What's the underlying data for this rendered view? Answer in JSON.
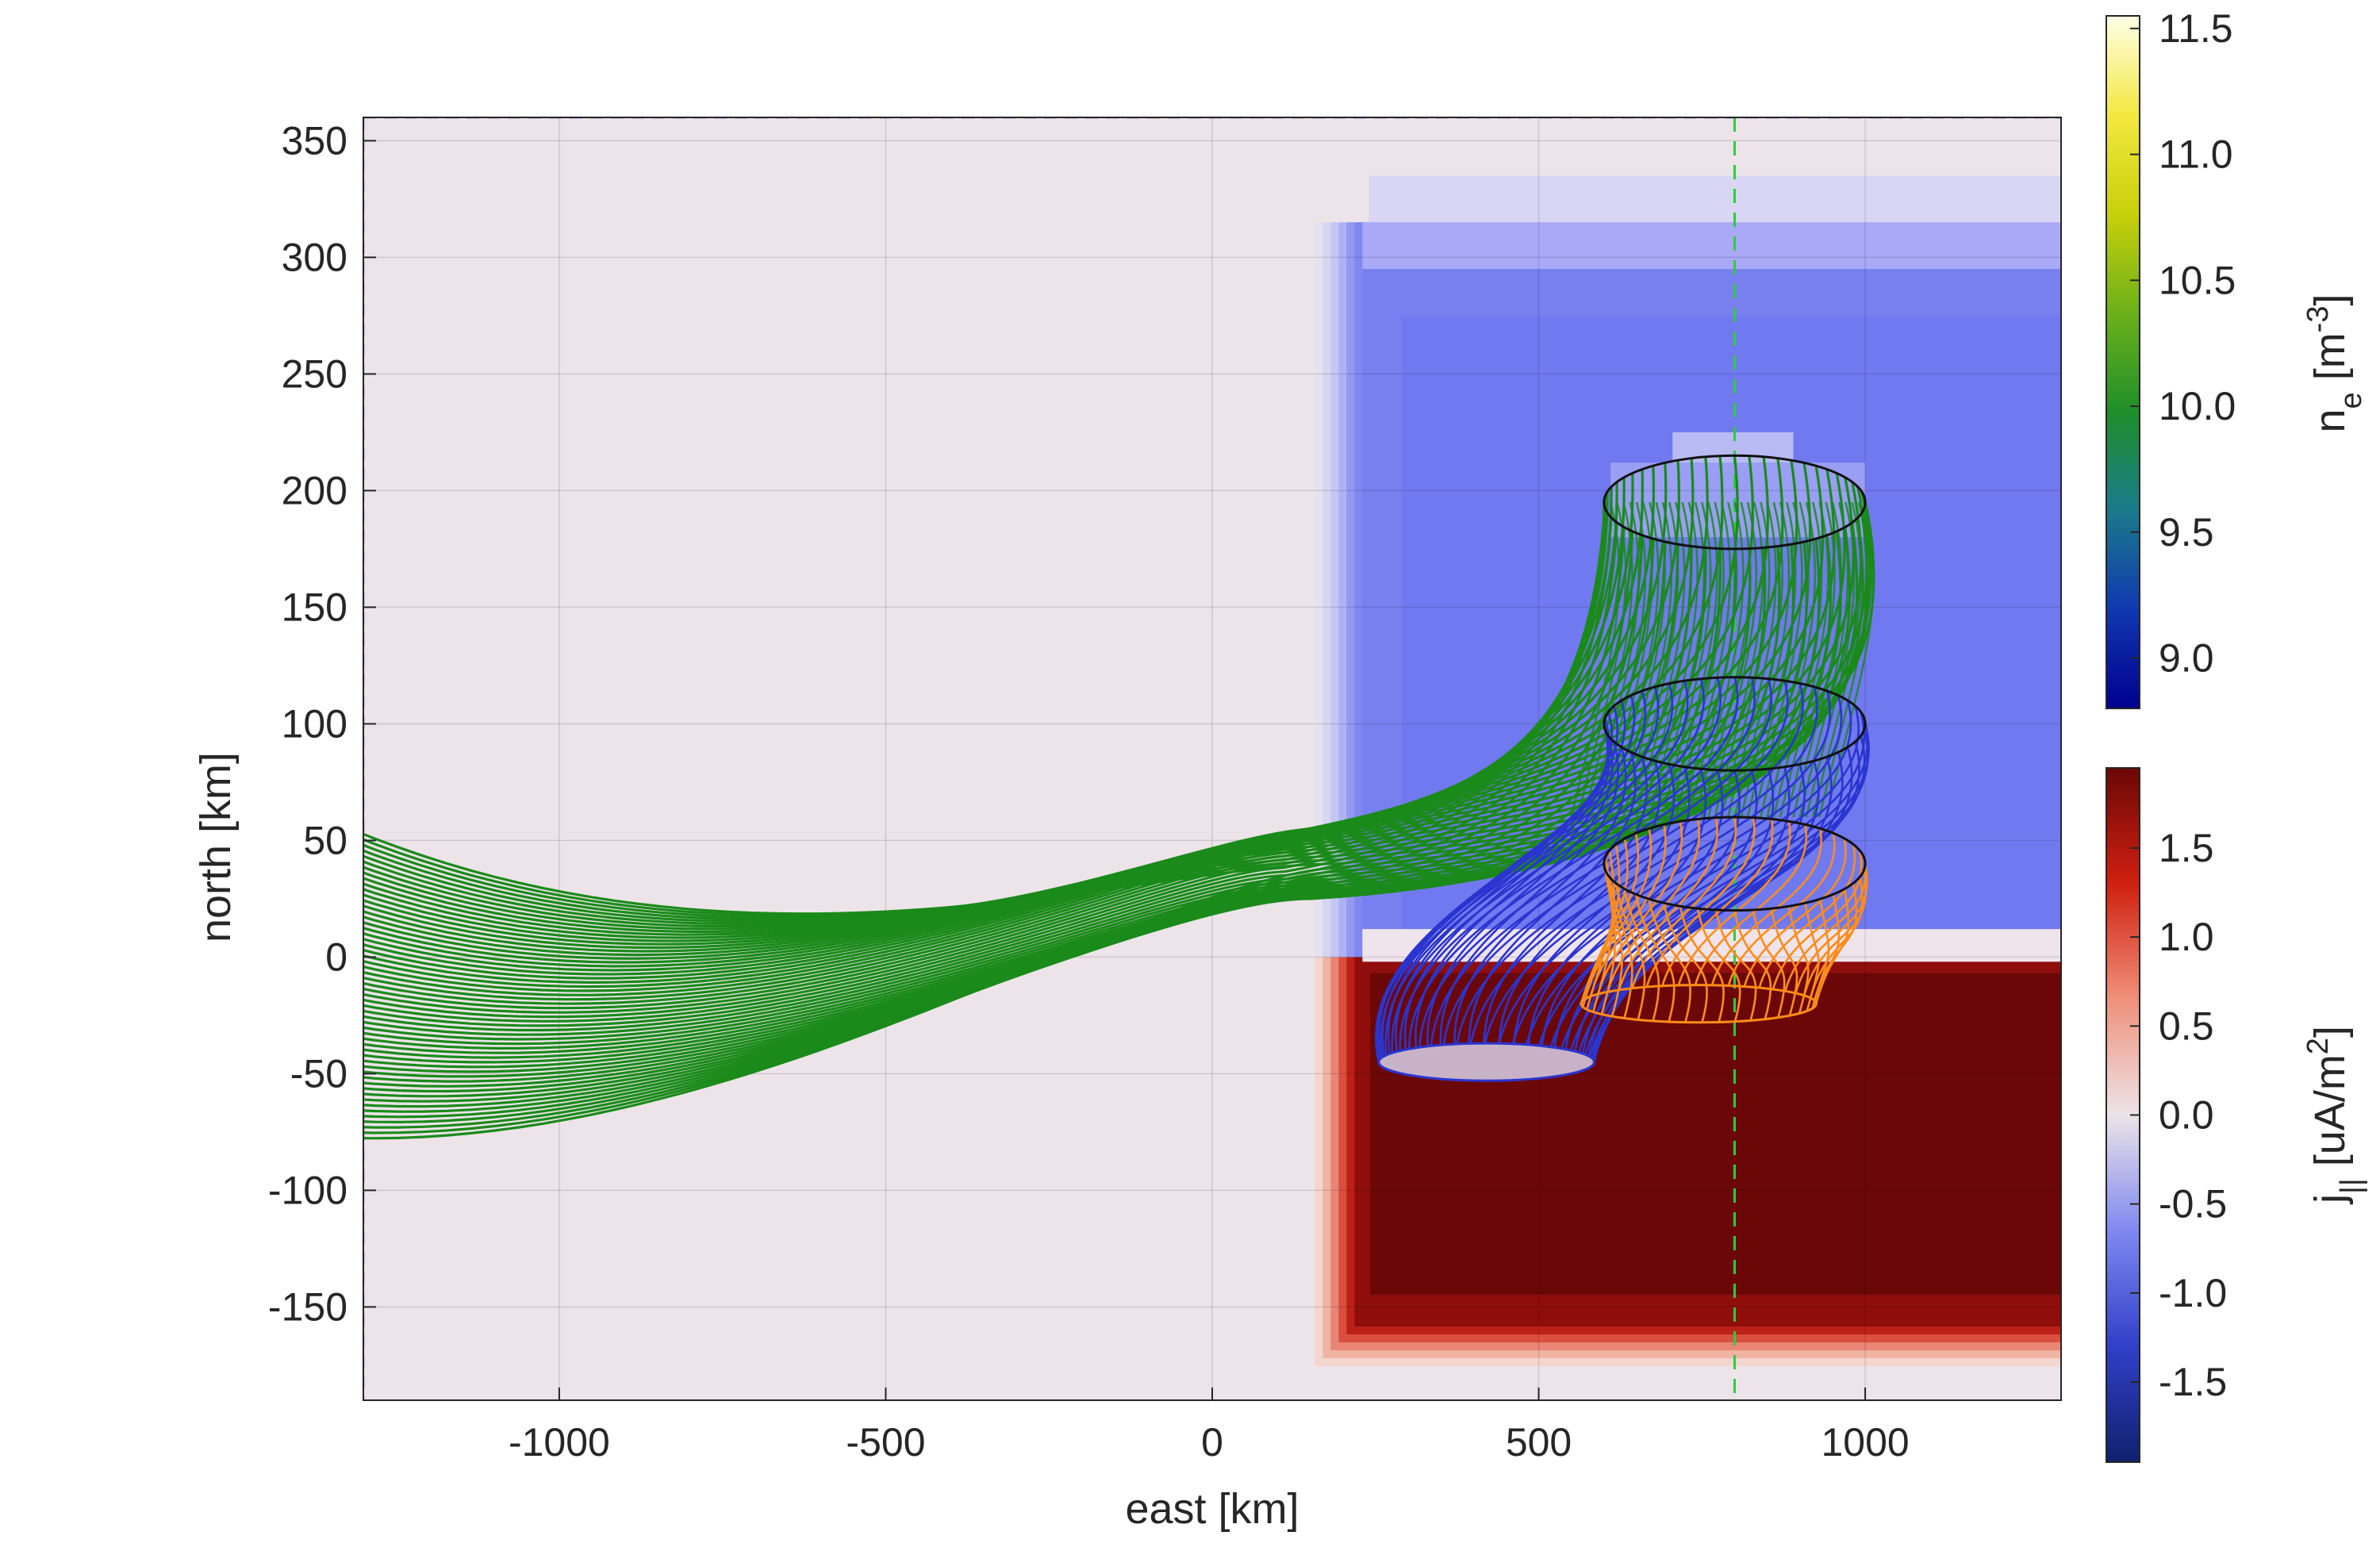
{
  "chart_data": {
    "type": "heatmap",
    "xlabel": "east [km]",
    "ylabel": "north [km]",
    "xlim": [
      -1300,
      1300
    ],
    "ylim": [
      -190,
      360
    ],
    "xticks": [
      "-1000",
      "-500",
      "0",
      "500",
      "1000"
    ],
    "xtick_values": [
      -1000,
      -500,
      0,
      500,
      1000
    ],
    "yticks": [
      "350",
      "300",
      "250",
      "200",
      "150",
      "100",
      "50",
      "0",
      "-50",
      "-100",
      "-150"
    ],
    "ytick_values": [
      350,
      300,
      250,
      200,
      150,
      100,
      50,
      0,
      -50,
      -100,
      -150
    ],
    "grid": true,
    "background_color": "#ece4e8",
    "reference_line": {
      "style": "dashed",
      "color": "#2ecc40",
      "x": 800
    },
    "ne_region": {
      "description_level": "n_e colored current regions",
      "x": [
        230,
        1300
      ],
      "y": [
        0,
        335
      ],
      "color": "#7880ef",
      "inner_shade_x": [
        290,
        1300
      ],
      "inner_shade_y": [
        0,
        275
      ],
      "inner_shade_color": "#7179f0",
      "top_band_y": [
        315,
        335
      ],
      "top_band_color": "#d8d6f2",
      "second_band_y": [
        295,
        315
      ],
      "second_band_color": "#a9a9f7"
    },
    "j_region": {
      "x": [
        230,
        1300
      ],
      "y": [
        -155,
        0
      ],
      "color": "#6b0707",
      "transition_y": [
        0,
        10
      ]
    },
    "flux_tubes": [
      {
        "name": "green",
        "color": "#1a8a1a",
        "top_ellipse": {
          "cx": 800,
          "cy": 195,
          "rx": 200,
          "ry": 20
        },
        "bundle_to_left": true
      },
      {
        "name": "blue",
        "color": "#2a35d0",
        "top_ellipse": {
          "cx": 800,
          "cy": 100,
          "rx": 200,
          "ry": 20
        },
        "bottom_ellipse": {
          "cx": 420,
          "cy": -45,
          "rx": 165,
          "ry": 8
        }
      },
      {
        "name": "orange",
        "color": "#ff8c1a",
        "top_ellipse": {
          "cx": 800,
          "cy": 40,
          "rx": 200,
          "ry": 20
        },
        "bottom_ellipse": {
          "cx": 745,
          "cy": -20,
          "rx": 180,
          "ry": 8
        }
      }
    ],
    "colorbar_ne": {
      "label_main": "n",
      "label_sub": "e",
      "label_rest": " [m",
      "label_sup": "-3",
      "label_end": "]",
      "ticks": [
        "11.5",
        "11.0",
        "10.5",
        "10.0",
        "9.5",
        "9.0"
      ],
      "tick_values": [
        11.5,
        11.0,
        10.5,
        10.0,
        9.5,
        9.0
      ],
      "range": [
        8.8,
        11.55
      ],
      "colormap": [
        "#00008f",
        "#1038b0",
        "#1a7a8a",
        "#1f8f2a",
        "#6cb01a",
        "#c8d00a",
        "#f4e840",
        "#ffffe8"
      ]
    },
    "colorbar_j": {
      "label_main": "j",
      "label_sub": "||",
      "label_rest": " [uA/m",
      "label_sup": "2",
      "label_end": "]",
      "ticks": [
        "1.5",
        "1.0",
        "0.5",
        "0.0",
        "-0.5",
        "-1.0",
        "-1.5"
      ],
      "tick_values": [
        1.5,
        1.0,
        0.5,
        0.0,
        -0.5,
        -1.0,
        -1.5
      ],
      "range": [
        -1.95,
        1.95
      ],
      "colormap": [
        "#10206e",
        "#3040c8",
        "#8088f0",
        "#ece4e8",
        "#f0907a",
        "#d02010",
        "#6b0707"
      ]
    }
  }
}
